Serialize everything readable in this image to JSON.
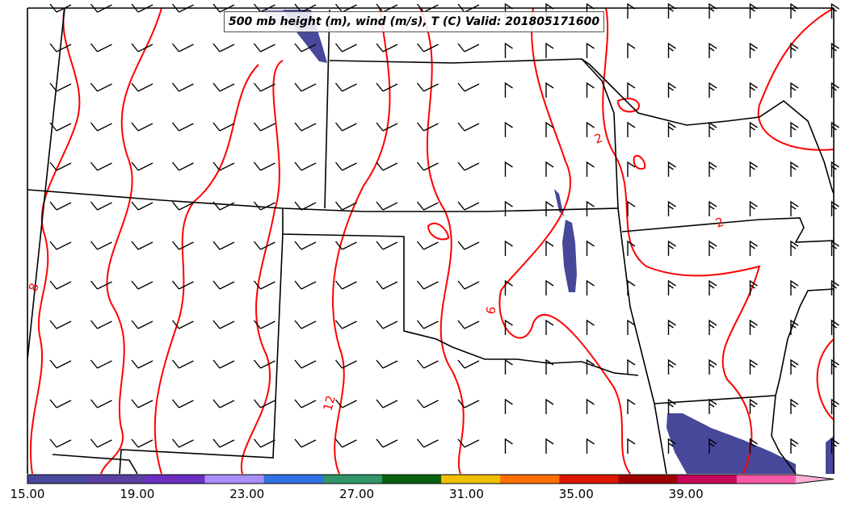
{
  "title": "500 mb height (m), wind (m/s), T (C) Valid: 201805171600",
  "colorbar": {
    "min": 15,
    "max": 43,
    "step": 2,
    "extend": "max",
    "colors": [
      "#48489a",
      "#5a3fa2",
      "#6a2ec0",
      "#a890f8",
      "#3272e2",
      "#30966a",
      "#08620e",
      "#f0c000",
      "#ff7000",
      "#dc1800",
      "#a00000",
      "#c8085a",
      "#f85aaa"
    ],
    "extend_color": "#ffb0d4",
    "tick_labels": [
      "15.00",
      "19.00",
      "23.00",
      "27.00",
      "31.00",
      "35.00",
      "39.00"
    ]
  },
  "contour_labels": [
    {
      "text": "2",
      "value": 2
    },
    {
      "text": "2",
      "value": 2
    },
    {
      "text": "6",
      "value": 6
    },
    {
      "text": "8",
      "value": 8
    },
    {
      "text": "12",
      "value": 12
    }
  ],
  "colors": {
    "contour": "#ff0000",
    "border": "#000000",
    "shade": "#48489a"
  }
}
